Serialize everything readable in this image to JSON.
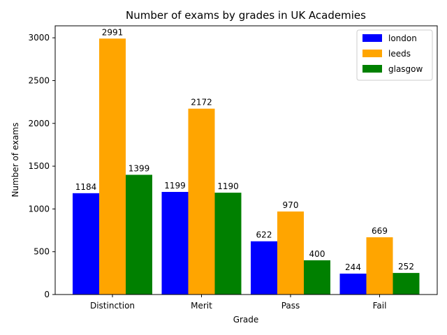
{
  "chart_data": {
    "type": "bar",
    "title": "Number of exams by grades in UK Academies",
    "xlabel": "Grade",
    "ylabel": "Number of exams",
    "categories": [
      "Distinction",
      "Merit",
      "Pass",
      "Fail"
    ],
    "series": [
      {
        "name": "london",
        "color": "#0000ff",
        "values": [
          1184,
          1199,
          622,
          244
        ]
      },
      {
        "name": "leeds",
        "color": "#ffa500",
        "values": [
          2991,
          2172,
          970,
          669
        ]
      },
      {
        "name": "glasgow",
        "color": "#008000",
        "values": [
          1399,
          1190,
          400,
          252
        ]
      }
    ],
    "ylim": [
      0,
      3140
    ],
    "yticks": [
      0,
      500,
      1000,
      1500,
      2000,
      2500,
      3000
    ],
    "grid": false,
    "legend_position": "top-right"
  }
}
